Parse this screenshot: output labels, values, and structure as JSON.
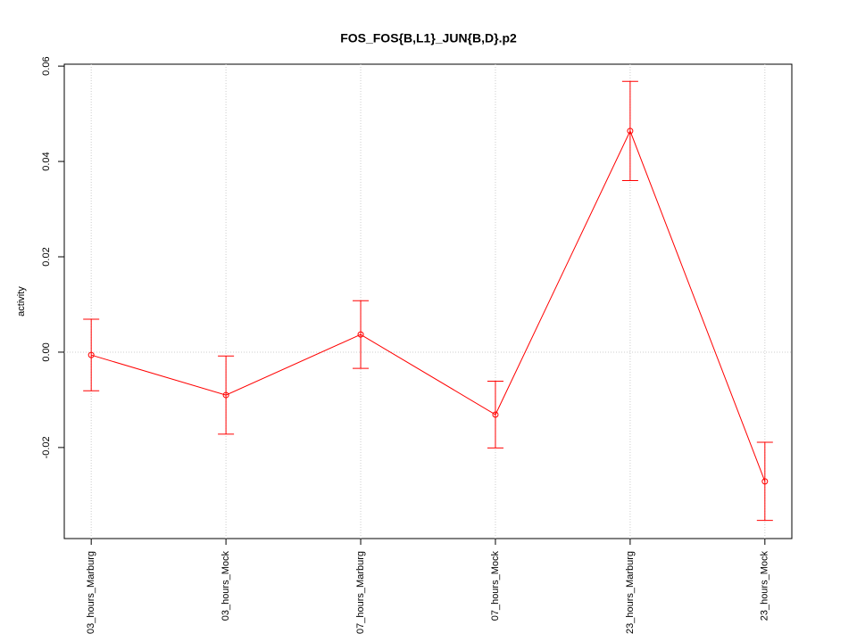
{
  "chart_data": {
    "type": "line",
    "title": "FOS_FOS{B,L1}_JUN{B,D}.p2",
    "ylabel": "activity",
    "categories": [
      "03_hours_Marburg",
      "03_hours_Mock",
      "07_hours_Marburg",
      "07_hours_Mock",
      "23_hours_Marburg",
      "23_hours_Mock"
    ],
    "values": [
      -0.0006,
      -0.009,
      0.0037,
      -0.0131,
      0.0464,
      -0.0271
    ],
    "errors": [
      0.0075,
      0.0082,
      0.0071,
      0.007,
      0.0104,
      0.0082
    ],
    "color": "#ff0000",
    "ylim": [
      -0.0391,
      0.0604
    ],
    "yticks": [
      -0.02,
      {
        "value": 0,
        "label": "0.00"
      },
      0.02,
      0.04,
      0.06
    ],
    "vertical_grid": true,
    "zero_line": true
  }
}
